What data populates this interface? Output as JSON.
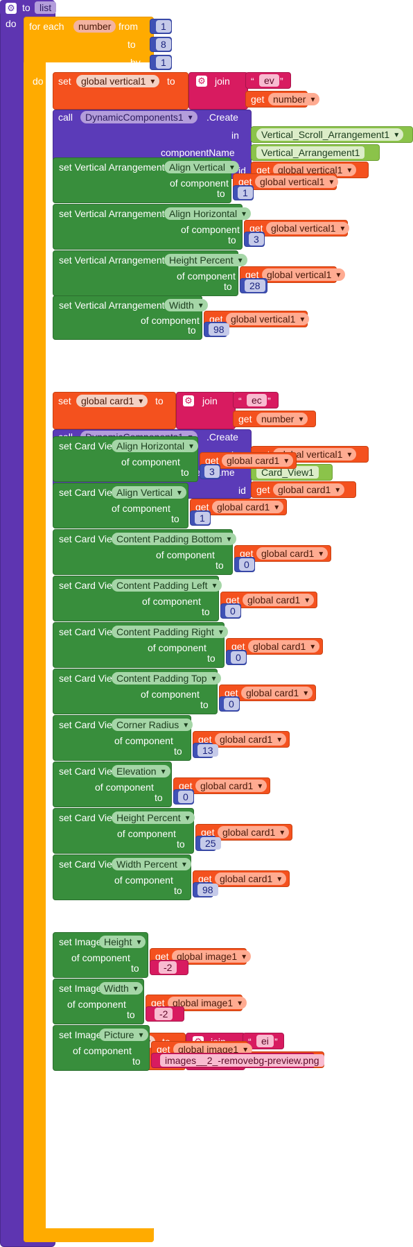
{
  "procedure": {
    "header": "to",
    "name": "list",
    "do": "do"
  },
  "loop": {
    "for_each": "for each",
    "var": "number",
    "from": "from",
    "to": "to",
    "by": "by",
    "do": "do",
    "from_val": "1",
    "to_val": "8",
    "by_val": "1"
  },
  "labels": {
    "set": "set",
    "to": "to",
    "get": "get",
    "join": "join",
    "call": "call",
    "in": "in",
    "component_name": "componentName",
    "id": "id",
    "of_component": "of component",
    "create": ".Create",
    "set_va": "set Vertical Arrangement.",
    "set_cv": "set Card View.",
    "set_img": "set Image."
  },
  "vars": {
    "vertical": "global vertical1",
    "card": "global card1",
    "image": "global image1",
    "number": "number"
  },
  "texts": {
    "ev": "ev",
    "ec": "ec",
    "ei": "ei"
  },
  "components": {
    "dyn": "DynamicComponents1",
    "scroll_arr": "Vertical_Scroll_Arrangement1",
    "vert_arr": "Vertical_Arrangement1",
    "card_view": "Card_View1"
  },
  "va_props": [
    {
      "prop": "Align Vertical",
      "value": "1"
    },
    {
      "prop": "Align Horizontal",
      "value": "3"
    },
    {
      "prop": "Height Percent",
      "value": "28"
    },
    {
      "prop": "Width",
      "value": "98"
    }
  ],
  "va_height_get": "get global vertical1",
  "cv_props": [
    {
      "prop": "Align Horizontal",
      "value": "3"
    },
    {
      "prop": "Align Vertical",
      "value": "1"
    },
    {
      "prop": "Content Padding Bottom",
      "value": "0"
    },
    {
      "prop": "Content Padding Left",
      "value": "0"
    },
    {
      "prop": "Content Padding Right",
      "value": "0"
    },
    {
      "prop": "Content Padding Top",
      "value": "0"
    },
    {
      "prop": "Corner Radius",
      "value": "13"
    },
    {
      "prop": "Elevation",
      "value": "0"
    },
    {
      "prop": "Height Percent",
      "value": "25"
    },
    {
      "prop": "Width Percent",
      "value": "98"
    }
  ],
  "img_props": [
    {
      "prop": "Height",
      "value": "-2"
    },
    {
      "prop": "Width",
      "value": "-2"
    },
    {
      "prop": "Picture",
      "value": "images__2_-removebg-preview.png"
    }
  ],
  "colors": {
    "procedure": "#5e35b1",
    "loop": "#ffab00",
    "variables": "#f4511e",
    "component": "#5b3bb8",
    "setter": "#388e3c",
    "math": "#3f51b5",
    "text": "#d81b60"
  }
}
